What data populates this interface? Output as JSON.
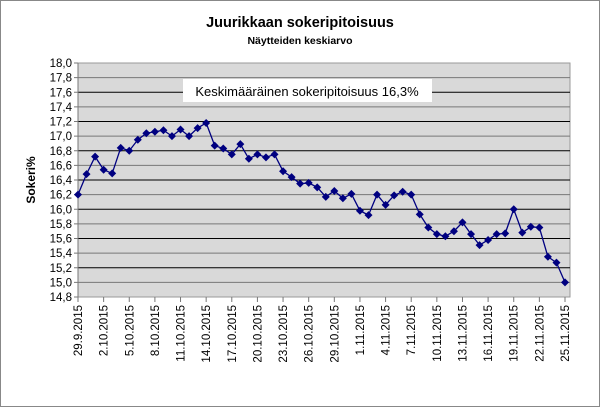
{
  "chart_data": {
    "type": "line",
    "title": "Juurikkaan sokeripitoisuus",
    "subtitle": "Näytteiden keskiarvo",
    "ylabel": "Sokeri%",
    "xlabel": "",
    "annotation": "Keskimääräinen sokeripitoisuus 16,3%",
    "ylim": [
      14.8,
      18.0
    ],
    "ytick_step": 0.2,
    "grid": true,
    "legend": "none",
    "colors": {
      "series": "#000080",
      "plot_bg": "#d9d9d9",
      "grid": "#000000"
    },
    "x_tick_labels": [
      "29.9.2015",
      "2.10.2015",
      "5.10.2015",
      "8.10.2015",
      "11.10.2015",
      "14.10.2015",
      "17.10.2015",
      "20.10.2015",
      "23.10.2015",
      "26.10.2015",
      "29.10.2015",
      "1.11.2015",
      "4.11.2015",
      "7.11.2015",
      "10.11.2015",
      "13.11.2015",
      "16.11.2015",
      "19.11.2015",
      "22.11.2015",
      "25.11.2015"
    ],
    "x": [
      "29.9.2015",
      "30.9.2015",
      "1.10.2015",
      "2.10.2015",
      "3.10.2015",
      "4.10.2015",
      "5.10.2015",
      "6.10.2015",
      "7.10.2015",
      "8.10.2015",
      "9.10.2015",
      "10.10.2015",
      "11.10.2015",
      "12.10.2015",
      "13.10.2015",
      "14.10.2015",
      "15.10.2015",
      "16.10.2015",
      "17.10.2015",
      "18.10.2015",
      "19.10.2015",
      "20.10.2015",
      "21.10.2015",
      "22.10.2015",
      "23.10.2015",
      "24.10.2015",
      "25.10.2015",
      "26.10.2015",
      "27.10.2015",
      "28.10.2015",
      "29.10.2015",
      "30.10.2015",
      "31.10.2015",
      "1.11.2015",
      "2.11.2015",
      "3.11.2015",
      "4.11.2015",
      "5.11.2015",
      "6.11.2015",
      "7.11.2015",
      "8.11.2015",
      "9.11.2015",
      "10.11.2015",
      "11.11.2015",
      "12.11.2015",
      "13.11.2015",
      "14.11.2015",
      "15.11.2015",
      "16.11.2015",
      "17.11.2015",
      "18.11.2015",
      "19.11.2015",
      "20.11.2015",
      "21.11.2015",
      "22.11.2015",
      "23.11.2015",
      "24.11.2015",
      "25.11.2015"
    ],
    "values": [
      16.2,
      16.48,
      16.72,
      16.54,
      16.49,
      16.84,
      16.8,
      16.95,
      17.04,
      17.06,
      17.08,
      17.0,
      17.09,
      17.0,
      17.11,
      17.18,
      16.87,
      16.83,
      16.75,
      16.89,
      16.69,
      16.75,
      16.71,
      16.75,
      16.52,
      16.44,
      16.35,
      16.36,
      16.3,
      16.17,
      16.25,
      16.15,
      16.21,
      15.98,
      15.92,
      16.2,
      16.06,
      16.19,
      16.24,
      16.2,
      15.93,
      15.75,
      15.66,
      15.63,
      15.7,
      15.82,
      15.66,
      15.51,
      15.58,
      15.66,
      15.67,
      16.0,
      15.68,
      15.76,
      15.75,
      15.35,
      15.27,
      15.0
    ]
  }
}
